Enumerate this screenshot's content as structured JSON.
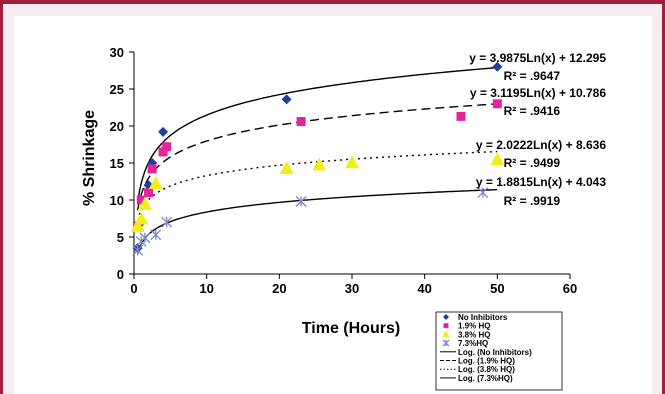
{
  "chart_data": {
    "type": "scatter",
    "xlabel": "Time (Hours)",
    "ylabel": "% Shrinkage",
    "xlim": [
      0,
      60
    ],
    "ylim": [
      0,
      30
    ],
    "xticks": [
      "0",
      "10",
      "20",
      "30",
      "40",
      "50",
      "60"
    ],
    "yticks": [
      "0",
      "5",
      "10",
      "15",
      "20",
      "25",
      "30"
    ],
    "grid": false,
    "legend_position": "bottom-right",
    "series": [
      {
        "name": "No Inhibitors",
        "marker": "diamond",
        "color": "#1f3f9f",
        "x": [
          0.5,
          1,
          2,
          2.5,
          4,
          21,
          50
        ],
        "y": [
          3.5,
          7,
          12,
          15,
          19.2,
          23.6,
          28
        ],
        "trend": {
          "a": 3.9875,
          "b": 12.295,
          "equation": "y = 3.9875Ln(x) + 12.295",
          "r2": "R² = .9647",
          "style": "solid",
          "legend": "Log. (No Inhibitors)"
        }
      },
      {
        "name": "1.9% HQ",
        "marker": "square",
        "color": "#e1249b",
        "x": [
          0.5,
          1,
          2,
          2.5,
          4,
          4.5,
          23,
          45,
          50
        ],
        "y": [
          6.5,
          10,
          11,
          14.2,
          16.5,
          17.2,
          20.6,
          21.3,
          23
        ],
        "trend": {
          "a": 3.1195,
          "b": 10.786,
          "equation": "y = 3.1195Ln(x) + 10.786",
          "r2": "R² = .9416",
          "style": "dashed",
          "legend": "Log. (1.9% HQ)"
        }
      },
      {
        "name": "3.8% HQ",
        "marker": "triangle",
        "color": "#f2ee1a",
        "x": [
          0.5,
          1,
          1.5,
          3,
          21,
          25.5,
          30,
          50
        ],
        "y": [
          6.5,
          7.5,
          9.5,
          12.3,
          14.3,
          14.8,
          15.1,
          15.5
        ],
        "trend": {
          "a": 2.0222,
          "b": 8.636,
          "equation": "y = 2.0222Ln(x) + 8.636",
          "r2": "R² = .9499",
          "style": "dotted",
          "legend": "Log. (3.8% HQ)"
        }
      },
      {
        "name": "7.3%HQ",
        "marker": "asterisk",
        "color": "#7a86c8",
        "x": [
          0.5,
          1,
          1.5,
          3,
          4.5,
          23,
          48
        ],
        "y": [
          3.2,
          4.4,
          4.9,
          5.3,
          7,
          9.8,
          11
        ],
        "trend": {
          "a": 1.8815,
          "b": 4.043,
          "equation": "y = 1.8815Ln(x) + 4.043",
          "r2": "R² = .9919",
          "style": "solid",
          "legend": "Log. (7.3%HQ)"
        }
      }
    ]
  }
}
